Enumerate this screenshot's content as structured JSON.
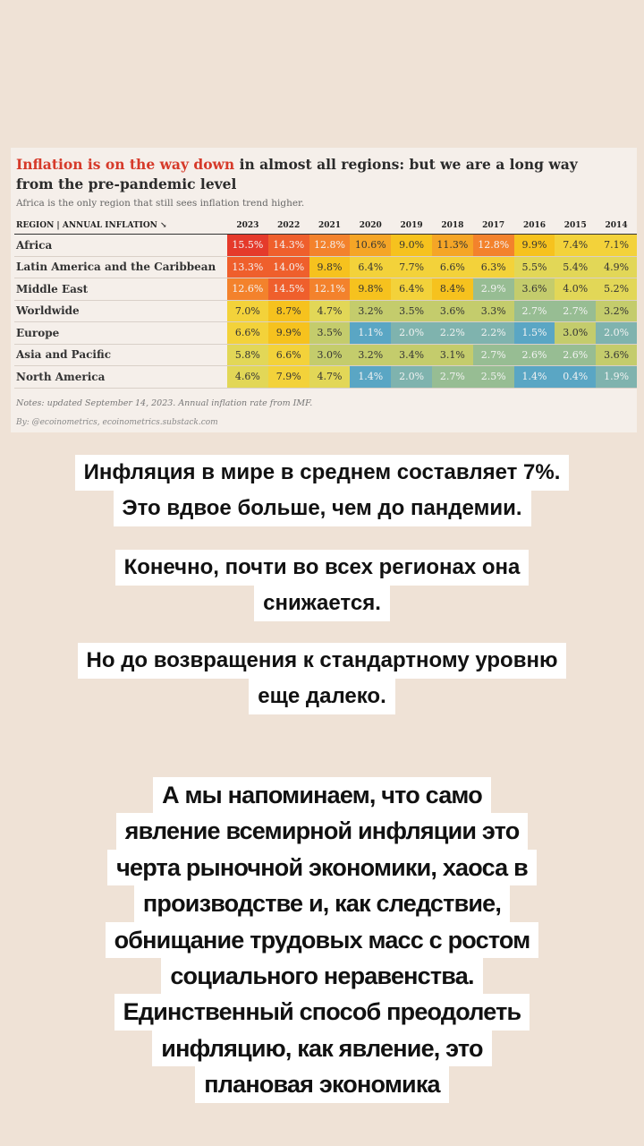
{
  "image": {
    "title": {
      "highlight": "Inflation is on the way down",
      "rest": " in almost all regions: but we are a long way from the pre-pandemic level"
    },
    "subtitle": "Africa is the only region that still sees inflation trend higher.",
    "table": {
      "header": [
        "REGION | ANNUAL INFLATION ↘",
        "2023",
        "2022",
        "2021",
        "2020",
        "2019",
        "2018",
        "2017",
        "2016",
        "2015",
        "2014"
      ],
      "rows": [
        [
          "Africa",
          "15.5%",
          "14.3%",
          "12.8%",
          "10.6%",
          "9.0%",
          "11.3%",
          "12.8%",
          "9.9%",
          "7.4%",
          "7.1%"
        ],
        [
          "Latin America and the Caribbean",
          "13.3%",
          "14.0%",
          "9.8%",
          "6.4%",
          "7.7%",
          "6.6%",
          "6.3%",
          "5.5%",
          "5.4%",
          "4.9%"
        ],
        [
          "Middle East",
          "12.6%",
          "14.5%",
          "12.1%",
          "9.8%",
          "6.4%",
          "8.4%",
          "2.9%",
          "3.6%",
          "4.0%",
          "5.2%"
        ],
        [
          "Worldwide",
          "7.0%",
          "8.7%",
          "4.7%",
          "3.2%",
          "3.5%",
          "3.6%",
          "3.3%",
          "2.7%",
          "2.7%",
          "3.2%"
        ],
        [
          "Europe",
          "6.6%",
          "9.9%",
          "3.5%",
          "1.1%",
          "2.0%",
          "2.2%",
          "2.2%",
          "1.5%",
          "3.0%",
          "2.0%"
        ],
        [
          "Asia and Pacific",
          "5.8%",
          "6.6%",
          "3.0%",
          "3.2%",
          "3.4%",
          "3.1%",
          "2.7%",
          "2.6%",
          "2.6%",
          "3.6%"
        ],
        [
          "North America",
          "4.6%",
          "7.9%",
          "4.7%",
          "1.4%",
          "2.0%",
          "2.7%",
          "2.5%",
          "1.4%",
          "0.4%",
          "1.9%"
        ]
      ]
    },
    "notes": "Notes: updated September 14, 2023. Annual inflation rate from IMF.",
    "byline": "By: @ecoinometrics, ecoinometrics.substack.com"
  },
  "captions": [
    [
      "Инфляция в мире в среднем составляет 7%.",
      "Это вдвое больше, чем до пандемии."
    ],
    [
      "Конечно, почти во всех регионах она",
      "снижается."
    ],
    [
      "Но до возвращения к стандартному уровню",
      "еще далеко."
    ],
    [
      "А мы напоминаем, что само",
      "явление всемирной инфляции это",
      "черта рыночной экономики, хаоса в",
      "производстве и, как следствие,",
      "обнищание трудовых масс с ростом",
      "социального неравенства.",
      "Единственный способ преодолеть",
      "инфляцию, как явление, это",
      "плановая экономика"
    ]
  ]
}
